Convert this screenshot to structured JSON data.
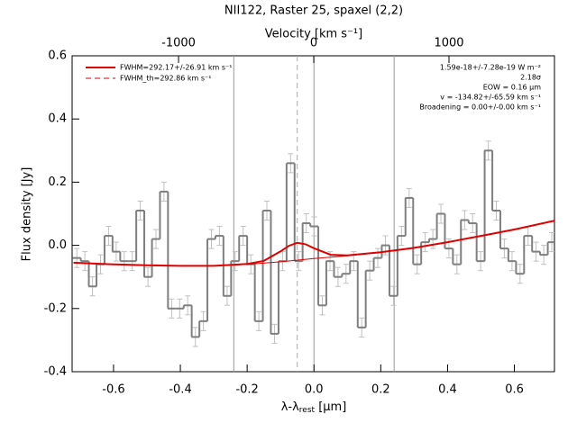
{
  "chart_data": {
    "type": "step",
    "title": "NII122, Raster 25, spaxel (2,2)",
    "x_label": [
      "λ-λ",
      "rest",
      " [μm]"
    ],
    "y_label": "Flux density [Jy]",
    "top_label": "Velocity [km s⁻¹]",
    "xlim": [
      -0.724,
      0.72
    ],
    "ylim": [
      -0.4,
      0.6
    ],
    "toplim": [
      -1787,
      1780
    ],
    "xticks": [
      -0.6,
      -0.4,
      -0.2,
      {
        "value": 0,
        "label": "0.0"
      },
      0.2,
      0.4,
      0.6
    ],
    "yticks": [
      -0.4,
      -0.2,
      {
        "value": 0,
        "label": "0.0"
      },
      0.2,
      0.4,
      0.6
    ],
    "topticks": [
      -1000,
      0,
      1000
    ],
    "color": "#7f7f7f",
    "error_color": "#c0c0c0",
    "fit_color": "#e00000",
    "x": [
      -0.71,
      -0.686,
      -0.663,
      -0.639,
      -0.615,
      -0.592,
      -0.568,
      -0.544,
      -0.52,
      -0.497,
      -0.473,
      -0.449,
      -0.426,
      -0.402,
      -0.378,
      -0.355,
      -0.331,
      -0.307,
      -0.283,
      -0.26,
      -0.236,
      -0.212,
      -0.189,
      -0.165,
      -0.141,
      -0.118,
      -0.094,
      -0.07,
      -0.046,
      -0.023,
      0.001,
      0.025,
      0.048,
      0.072,
      0.096,
      0.119,
      0.143,
      0.167,
      0.191,
      0.214,
      0.238,
      0.262,
      0.285,
      0.309,
      0.333,
      0.356,
      0.38,
      0.404,
      0.428,
      0.451,
      0.475,
      0.499,
      0.522,
      0.546,
      0.57,
      0.593,
      0.617,
      0.641,
      0.665,
      0.688,
      0.712
    ],
    "values": [
      -0.04,
      -0.05,
      -0.13,
      -0.06,
      0.03,
      -0.02,
      -0.05,
      -0.05,
      0.11,
      -0.1,
      0.02,
      0.17,
      -0.2,
      -0.2,
      -0.19,
      -0.29,
      -0.24,
      0.02,
      0.03,
      -0.16,
      -0.05,
      0.03,
      -0.06,
      -0.24,
      0.11,
      -0.28,
      -0.05,
      0.26,
      -0.05,
      0.07,
      0.06,
      -0.19,
      -0.05,
      -0.1,
      -0.09,
      -0.05,
      -0.26,
      -0.08,
      -0.04,
      0.0,
      -0.16,
      0.03,
      0.15,
      -0.06,
      0.01,
      0.02,
      0.1,
      -0.01,
      -0.06,
      0.08,
      0.07,
      -0.05,
      0.3,
      0.11,
      -0.01,
      -0.05,
      -0.09,
      0.03,
      -0.02,
      -0.03,
      0.01
    ],
    "errors": [
      0.03,
      0.03,
      0.03,
      0.03,
      0.03,
      0.03,
      0.03,
      0.03,
      0.03,
      0.03,
      0.03,
      0.03,
      0.03,
      0.03,
      0.03,
      0.03,
      0.03,
      0.03,
      0.03,
      0.03,
      0.03,
      0.03,
      0.03,
      0.03,
      0.03,
      0.03,
      0.03,
      0.03,
      0.03,
      0.03,
      0.03,
      0.03,
      0.03,
      0.03,
      0.03,
      0.03,
      0.03,
      0.03,
      0.03,
      0.03,
      0.03,
      0.03,
      0.03,
      0.03,
      0.03,
      0.03,
      0.03,
      0.03,
      0.03,
      0.03,
      0.03,
      0.03,
      0.03,
      0.03,
      0.03,
      0.03,
      0.03,
      0.03,
      0.03,
      0.03,
      0.03
    ],
    "fit": {
      "name": "FWHM=292.17+/-26.91 km s⁻¹",
      "x": [
        -0.72,
        -0.6,
        -0.5,
        -0.4,
        -0.3,
        -0.2,
        -0.15,
        -0.1,
        -0.075,
        -0.05,
        -0.025,
        0,
        0.05,
        0.1,
        0.2,
        0.3,
        0.4,
        0.5,
        0.6,
        0.72
      ],
      "values": [
        -0.055,
        -0.06,
        -0.063,
        -0.065,
        -0.065,
        -0.059,
        -0.049,
        -0.019,
        -0.0015,
        0.008,
        0.0035,
        -0.009,
        -0.03,
        -0.032,
        -0.022,
        -0.008,
        0.01,
        0.03,
        0.05,
        0.078
      ]
    },
    "baseline": {
      "x": [
        -0.72,
        -0.6,
        -0.5,
        -0.4,
        -0.3,
        -0.2,
        -0.1,
        0,
        0.1,
        0.2,
        0.3,
        0.4,
        0.5,
        0.6,
        0.72
      ],
      "values": [
        -0.055,
        -0.06,
        -0.063,
        -0.065,
        -0.065,
        -0.06,
        -0.052,
        -0.042,
        -0.033,
        -0.022,
        -0.008,
        0.01,
        0.03,
        0.05,
        0.078
      ]
    },
    "theory_legend": "FWHM_th=292.86 km s⁻¹",
    "vlines": [
      -0.24,
      0,
      0.24
    ],
    "dashed_vline": -0.05,
    "annotations": [
      "1.59e-18+/-7.28e-19 W m⁻²",
      "2.18σ",
      "EOW = 0.16 μm",
      "v = -134.82+/-65.59 km s⁻¹",
      "Broadening = 0.00+/-0.00 km s⁻¹"
    ]
  }
}
